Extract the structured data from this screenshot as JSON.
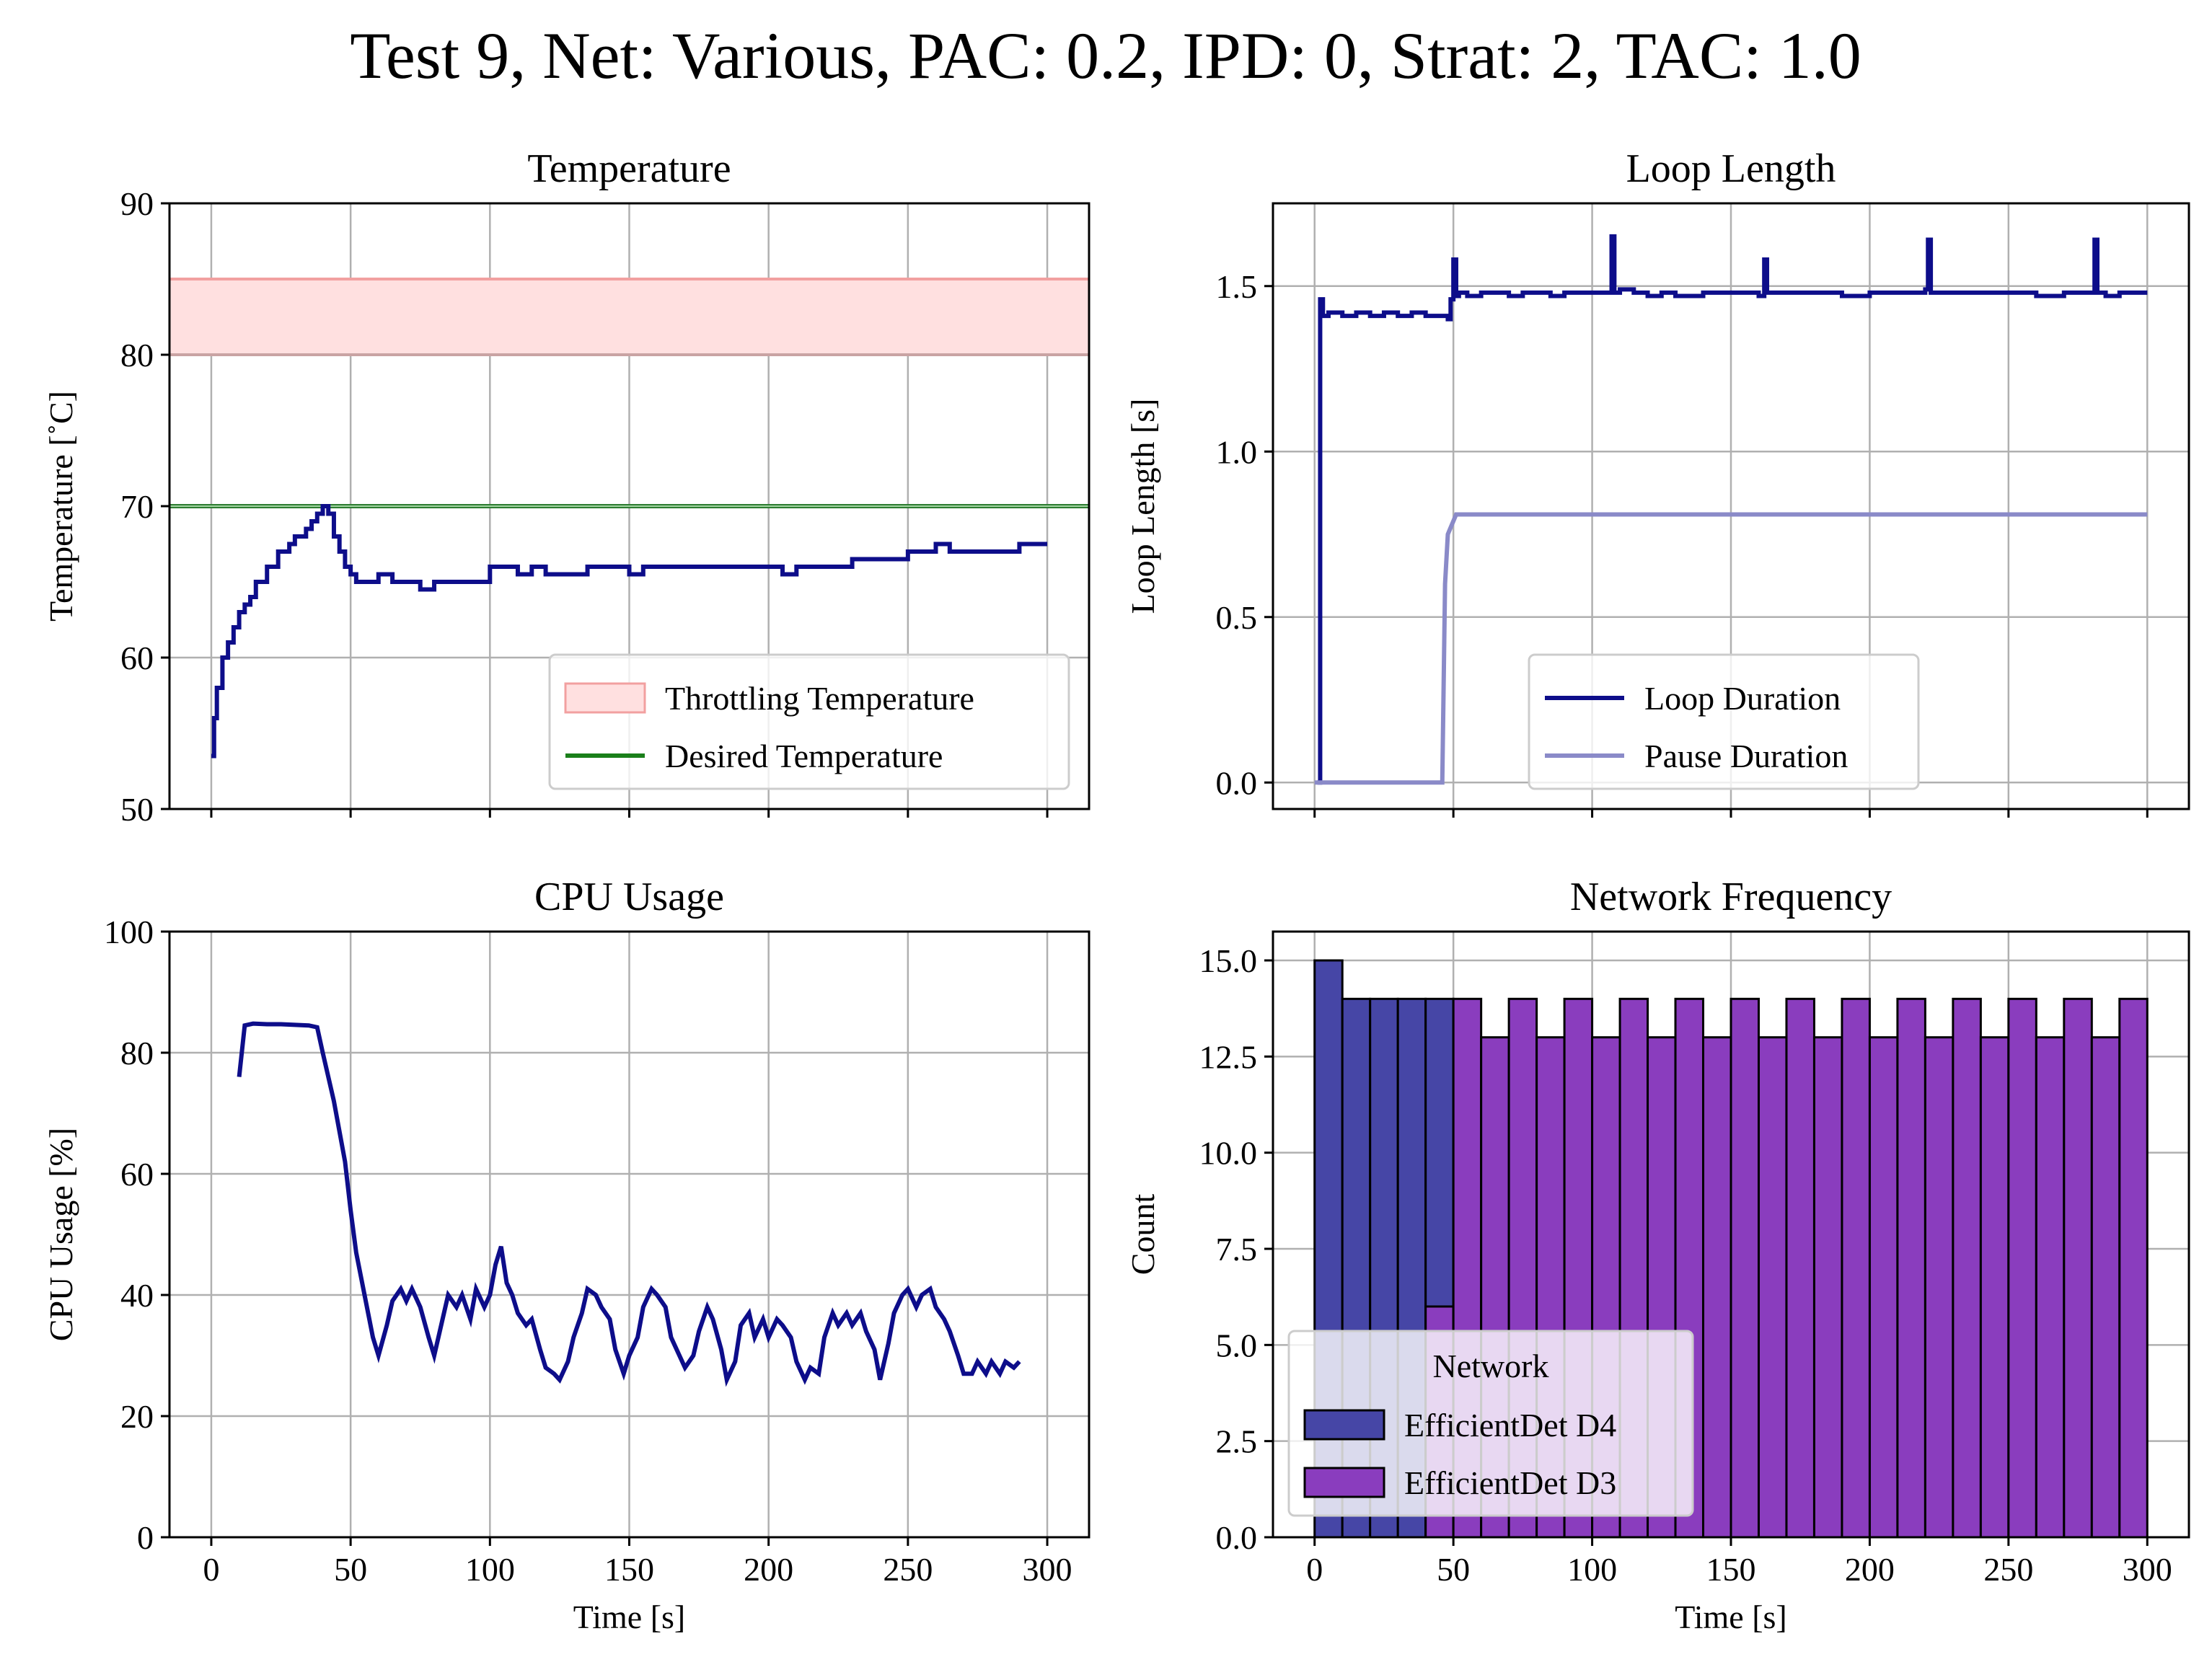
{
  "suptitle": "Test 9, Net: Various, PAC: 0.2, IPD: 0, Strat: 2, TAC: 1.0",
  "colors": {
    "main_line": "#0d0d8a",
    "pause_line": "#8a8ac8",
    "throttle_fill": "#ffe0e0",
    "throttle_edge": "#f2a0a0",
    "desired": "#2e7d32",
    "d4_bar": "#4646a6",
    "d3_bar": "#8a3dbe",
    "grid": "#b0b0b0"
  },
  "chart_data": [
    {
      "id": "temperature",
      "type": "line",
      "title": "Temperature",
      "xlabel": "",
      "ylabel": "Temperature [˚C]",
      "xlim": [
        -15,
        315
      ],
      "ylim": [
        50,
        90
      ],
      "xticks": [
        0,
        50,
        100,
        150,
        200,
        250,
        300
      ],
      "yticks": [
        50,
        60,
        70,
        80,
        90
      ],
      "show_xtick_labels": false,
      "grid": true,
      "legend": {
        "placement": "lower-right",
        "items": [
          {
            "label": "Throttling Temperature",
            "kind": "patch",
            "color": "#ffe0e0",
            "edge": "#f2a0a0"
          },
          {
            "label": "Desired Temperature",
            "kind": "line",
            "color": "#1a7f1a"
          }
        ]
      },
      "bands": [
        {
          "name": "Throttling Temperature",
          "y0": 80,
          "y1": 85
        }
      ],
      "hlines": [
        {
          "name": "Desired Temperature",
          "y": 70
        }
      ],
      "series": [
        {
          "color_key": "main_line",
          "step": true,
          "x": [
            0,
            1,
            2,
            4,
            6,
            8,
            10,
            12,
            14,
            16,
            18,
            20,
            22,
            24,
            26,
            28,
            30,
            32,
            34,
            36,
            38,
            40,
            42,
            44,
            46,
            48,
            50,
            52,
            54,
            56,
            58,
            60,
            65,
            70,
            75,
            80,
            85,
            90,
            95,
            100,
            105,
            110,
            115,
            120,
            125,
            130,
            135,
            140,
            145,
            150,
            155,
            160,
            165,
            170,
            175,
            180,
            185,
            190,
            195,
            200,
            205,
            210,
            215,
            220,
            225,
            230,
            235,
            240,
            245,
            250,
            255,
            260,
            265,
            270,
            275,
            280,
            285,
            290,
            295,
            300
          ],
          "y": [
            53.5,
            56,
            58,
            60,
            61,
            62,
            63,
            63.5,
            64,
            65,
            65,
            66,
            66,
            67,
            67,
            67.5,
            68,
            68,
            68.5,
            69,
            69.5,
            70,
            69.5,
            68,
            67,
            66,
            65.5,
            65,
            65,
            65,
            65,
            65.5,
            65,
            65,
            64.5,
            65,
            65,
            65,
            65,
            66,
            66,
            65.5,
            66,
            65.5,
            65.5,
            65.5,
            66,
            66,
            66,
            65.5,
            66,
            66,
            66,
            66,
            66,
            66,
            66,
            66,
            66,
            66,
            65.5,
            66,
            66,
            66,
            66,
            66.5,
            66.5,
            66.5,
            66.5,
            67,
            67,
            67.5,
            67,
            67,
            67,
            67,
            67,
            67.5,
            67.5,
            67.5
          ]
        }
      ]
    },
    {
      "id": "loop_length",
      "type": "line",
      "title": "Loop Length",
      "xlabel": "",
      "ylabel": "Loop Length [s]",
      "xlim": [
        -15,
        315
      ],
      "ylim": [
        -0.08,
        1.75
      ],
      "xticks": [
        0,
        50,
        100,
        150,
        200,
        250,
        300
      ],
      "yticks": [
        0.0,
        0.5,
        1.0,
        1.5
      ],
      "ytick_labels": [
        "0.0",
        "0.5",
        "1.0",
        "1.5"
      ],
      "show_xtick_labels": false,
      "grid": true,
      "legend": {
        "placement": "lower-center",
        "items": [
          {
            "label": "Loop Duration",
            "kind": "line",
            "color": "#0d0d8a"
          },
          {
            "label": "Pause Duration",
            "kind": "line",
            "color": "#8a8ac8"
          }
        ]
      },
      "series": [
        {
          "name": "Loop Duration",
          "color_key": "main_line",
          "step": true,
          "x": [
            1,
            2,
            3,
            5,
            10,
            15,
            20,
            25,
            30,
            35,
            40,
            45,
            48,
            49,
            50,
            51,
            52,
            55,
            60,
            65,
            70,
            75,
            80,
            85,
            90,
            95,
            100,
            105,
            107,
            108,
            110,
            115,
            120,
            125,
            130,
            140,
            150,
            160,
            162,
            163,
            165,
            170,
            180,
            190,
            200,
            210,
            220,
            221,
            222,
            225,
            230,
            240,
            250,
            260,
            270,
            280,
            281,
            282,
            285,
            290,
            295,
            300
          ],
          "y": [
            0.0,
            1.46,
            1.41,
            1.42,
            1.41,
            1.42,
            1.41,
            1.42,
            1.41,
            1.42,
            1.41,
            1.41,
            1.4,
            1.46,
            1.58,
            1.47,
            1.48,
            1.47,
            1.48,
            1.48,
            1.47,
            1.48,
            1.48,
            1.47,
            1.48,
            1.48,
            1.48,
            1.48,
            1.65,
            1.48,
            1.49,
            1.48,
            1.47,
            1.48,
            1.47,
            1.48,
            1.48,
            1.47,
            1.58,
            1.48,
            1.48,
            1.48,
            1.48,
            1.47,
            1.48,
            1.48,
            1.49,
            1.64,
            1.48,
            1.48,
            1.48,
            1.48,
            1.48,
            1.47,
            1.48,
            1.48,
            1.64,
            1.48,
            1.47,
            1.48,
            1.48,
            1.48
          ]
        },
        {
          "name": "Pause Duration",
          "color_key": "pause_line",
          "step": false,
          "x": [
            0,
            46,
            46.5,
            47,
            48,
            49,
            50,
            51,
            60,
            100,
            150,
            200,
            250,
            300
          ],
          "y": [
            0.0,
            0.0,
            0.3,
            0.6,
            0.75,
            0.77,
            0.79,
            0.81,
            0.81,
            0.81,
            0.81,
            0.81,
            0.81,
            0.81
          ]
        }
      ]
    },
    {
      "id": "cpu_usage",
      "type": "line",
      "title": "CPU Usage",
      "xlabel": "Time [s]",
      "ylabel": "CPU Usage [%]",
      "xlim": [
        -15,
        315
      ],
      "ylim": [
        0,
        100
      ],
      "xticks": [
        0,
        50,
        100,
        150,
        200,
        250,
        300
      ],
      "yticks": [
        0,
        20,
        40,
        60,
        80,
        100
      ],
      "show_xtick_labels": true,
      "grid": true,
      "series": [
        {
          "color_key": "main_line",
          "step": false,
          "x": [
            10,
            12,
            15,
            20,
            25,
            30,
            35,
            38,
            40,
            42,
            44,
            46,
            48,
            50,
            52,
            55,
            58,
            60,
            63,
            65,
            68,
            70,
            72,
            75,
            78,
            80,
            83,
            85,
            88,
            90,
            93,
            95,
            98,
            100,
            102,
            104,
            106,
            108,
            110,
            113,
            115,
            118,
            120,
            123,
            125,
            128,
            130,
            133,
            135,
            138,
            140,
            143,
            145,
            148,
            150,
            153,
            155,
            158,
            160,
            163,
            165,
            168,
            170,
            173,
            175,
            178,
            180,
            183,
            185,
            188,
            190,
            193,
            195,
            198,
            200,
            203,
            205,
            208,
            210,
            213,
            215,
            218,
            220,
            223,
            225,
            228,
            230,
            233,
            235,
            238,
            240,
            243,
            245,
            248,
            250,
            253,
            255,
            258,
            260,
            263,
            265,
            268,
            270,
            273,
            275,
            278,
            280,
            283,
            285,
            288,
            290
          ],
          "y": [
            76,
            84.5,
            84.8,
            84.7,
            84.7,
            84.6,
            84.5,
            84.2,
            80,
            76,
            72,
            67,
            62,
            54,
            47,
            40,
            33,
            30,
            35,
            39,
            41,
            39,
            41,
            38,
            33,
            30,
            36,
            40,
            38,
            40,
            36,
            41,
            38,
            40,
            45,
            48,
            42,
            40,
            37,
            35,
            36,
            31,
            28,
            27,
            26,
            29,
            33,
            37,
            41,
            40,
            38,
            36,
            31,
            27,
            30,
            33,
            38,
            41,
            40,
            38,
            33,
            30,
            28,
            30,
            34,
            38,
            36,
            31,
            26,
            29,
            35,
            37,
            33,
            36,
            33,
            36,
            35,
            33,
            29,
            26,
            28,
            27,
            33,
            37,
            35,
            37,
            35,
            37,
            34,
            31,
            26,
            32,
            37,
            40,
            41,
            38,
            40,
            41,
            38,
            36,
            34,
            30,
            27,
            27,
            29,
            27,
            29,
            27,
            29,
            28,
            29
          ]
        }
      ]
    },
    {
      "id": "network_frequency",
      "type": "bar",
      "title": "Network Frequency",
      "xlabel": "Time [s]",
      "ylabel": "Count",
      "xlim": [
        -15,
        315
      ],
      "ylim": [
        0,
        15.75
      ],
      "xticks": [
        0,
        50,
        100,
        150,
        200,
        250,
        300
      ],
      "yticks": [
        0.0,
        2.5,
        5.0,
        7.5,
        10.0,
        12.5,
        15.0
      ],
      "ytick_labels": [
        "0.0",
        "2.5",
        "5.0",
        "7.5",
        "10.0",
        "12.5",
        "15.0"
      ],
      "show_xtick_labels": true,
      "grid": true,
      "bin_width": 10,
      "bin_edges_start": 0,
      "legend": {
        "placement": "lower-left",
        "title": "Network",
        "items": [
          {
            "label": "EfficientDet D4",
            "kind": "patch",
            "color": "#4646a6"
          },
          {
            "label": "EfficientDet D3",
            "kind": "patch",
            "color": "#8a3dbe"
          }
        ]
      },
      "series": [
        {
          "name": "EfficientDet D4",
          "color_key": "d4_bar",
          "values": [
            15,
            14,
            14,
            14,
            14,
            0,
            0,
            0,
            0,
            0,
            0,
            0,
            0,
            0,
            0,
            0,
            0,
            0,
            0,
            0,
            0,
            0,
            0,
            0,
            0,
            0,
            0,
            0,
            0,
            0
          ]
        },
        {
          "name": "EfficientDet D3",
          "color_key": "d3_bar",
          "values": [
            0,
            0,
            0,
            0,
            6,
            14,
            13,
            14,
            13,
            14,
            13,
            14,
            13,
            14,
            13,
            14,
            13,
            14,
            13,
            14,
            13,
            14,
            13,
            14,
            13,
            14,
            13,
            14,
            13,
            14
          ]
        }
      ]
    }
  ]
}
